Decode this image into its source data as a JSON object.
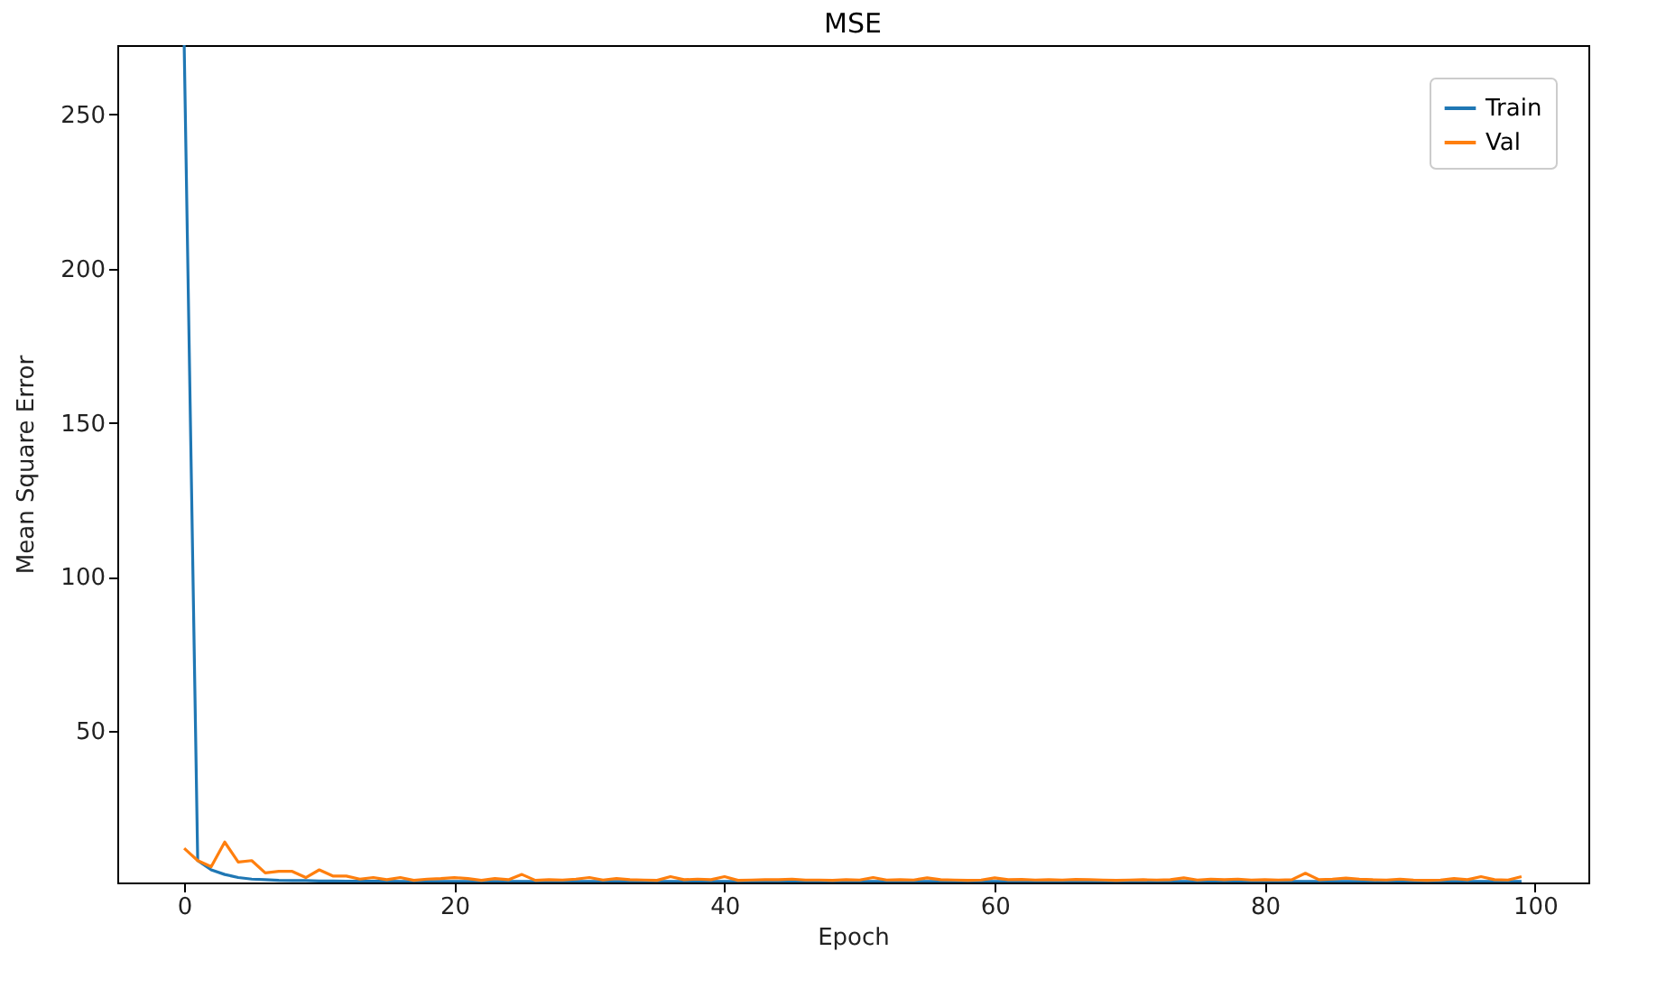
{
  "chart_data": {
    "type": "line",
    "title": "MSE",
    "xlabel": "Epoch",
    "ylabel": "Mean Square Error",
    "x": [
      0,
      1,
      2,
      3,
      4,
      5,
      6,
      7,
      8,
      9,
      10,
      11,
      12,
      13,
      14,
      15,
      16,
      17,
      18,
      19,
      20,
      21,
      22,
      23,
      24,
      25,
      26,
      27,
      28,
      29,
      30,
      31,
      32,
      33,
      34,
      35,
      36,
      37,
      38,
      39,
      40,
      41,
      42,
      43,
      44,
      45,
      46,
      47,
      48,
      49,
      50,
      51,
      52,
      53,
      54,
      55,
      56,
      57,
      58,
      59,
      60,
      61,
      62,
      63,
      64,
      65,
      66,
      67,
      68,
      69,
      70,
      71,
      72,
      73,
      74,
      75,
      76,
      77,
      78,
      79,
      80,
      81,
      82,
      83,
      84,
      85,
      86,
      87,
      88,
      89,
      90,
      91,
      92,
      93,
      94,
      95,
      96,
      97,
      98,
      99
    ],
    "series": [
      {
        "name": "Train",
        "color": "#1f77b4",
        "values": [
          272.5,
          8,
          5,
          3.5,
          2.5,
          2,
          1.8,
          1.6,
          1.5,
          1.5,
          1.4,
          1.4,
          1.3,
          1.3,
          1.3,
          1.3,
          1.2,
          1.2,
          1.2,
          1.2,
          1.2,
          1.2,
          1.2,
          1.2,
          1.2,
          1.2,
          1.2,
          1.2,
          1.2,
          1.2,
          1.2,
          1.2,
          1.2,
          1.2,
          1.2,
          1.2,
          1.2,
          1.2,
          1.2,
          1.2,
          1.2,
          1.2,
          1.2,
          1.2,
          1.2,
          1.2,
          1.2,
          1.2,
          1.2,
          1.2,
          1.2,
          1.2,
          1.2,
          1.2,
          1.2,
          1.2,
          1.2,
          1.2,
          1.2,
          1.2,
          1.2,
          1.2,
          1.2,
          1.2,
          1.2,
          1.2,
          1.2,
          1.2,
          1.2,
          1.2,
          1.2,
          1.2,
          1.2,
          1.2,
          1.2,
          1.2,
          1.2,
          1.2,
          1.2,
          1.2,
          1.2,
          1.2,
          1.2,
          1.2,
          1.2,
          1.2,
          1.2,
          1.2,
          1.2,
          1.2,
          1.2,
          1.2,
          1.2,
          1.2,
          1.2,
          1.2,
          1.2,
          1.2,
          1.2,
          1.2
        ]
      },
      {
        "name": "Val",
        "color": "#ff7f0e",
        "values": [
          12,
          8,
          6,
          14,
          7.5,
          8,
          4,
          4.5,
          4.5,
          2.5,
          5,
          3,
          3,
          2,
          2.5,
          1.8,
          2.5,
          1.6,
          2,
          2.2,
          2.5,
          2.2,
          1.6,
          2.2,
          1.8,
          3.5,
          1.6,
          1.8,
          1.7,
          2,
          2.5,
          1.7,
          2.2,
          1.8,
          1.7,
          1.6,
          2.8,
          1.8,
          2,
          1.8,
          2.8,
          1.6,
          1.7,
          1.8,
          1.8,
          2,
          1.7,
          1.7,
          1.6,
          1.8,
          1.7,
          2.5,
          1.7,
          1.8,
          1.7,
          2.4,
          1.8,
          1.7,
          1.6,
          1.7,
          2.4,
          1.8,
          1.9,
          1.7,
          1.8,
          1.7,
          1.9,
          1.8,
          1.7,
          1.6,
          1.7,
          1.8,
          1.7,
          1.8,
          2.4,
          1.7,
          2,
          1.8,
          2,
          1.7,
          1.8,
          1.7,
          1.8,
          3.9,
          1.8,
          2,
          2.3,
          2,
          1.8,
          1.7,
          2,
          1.7,
          1.6,
          1.7,
          2.2,
          1.8,
          2.8,
          1.8,
          1.7,
          2.8
        ]
      }
    ],
    "xlim": [
      -4.95,
      103.95
    ],
    "xticks": [
      0,
      20,
      40,
      60,
      80,
      100
    ],
    "ylim": [
      0.9,
      272.5
    ],
    "yticks": [
      50,
      100,
      150,
      200,
      250
    ],
    "grid": false,
    "legend": "top right",
    "line_style": "solid",
    "marker": "none"
  }
}
